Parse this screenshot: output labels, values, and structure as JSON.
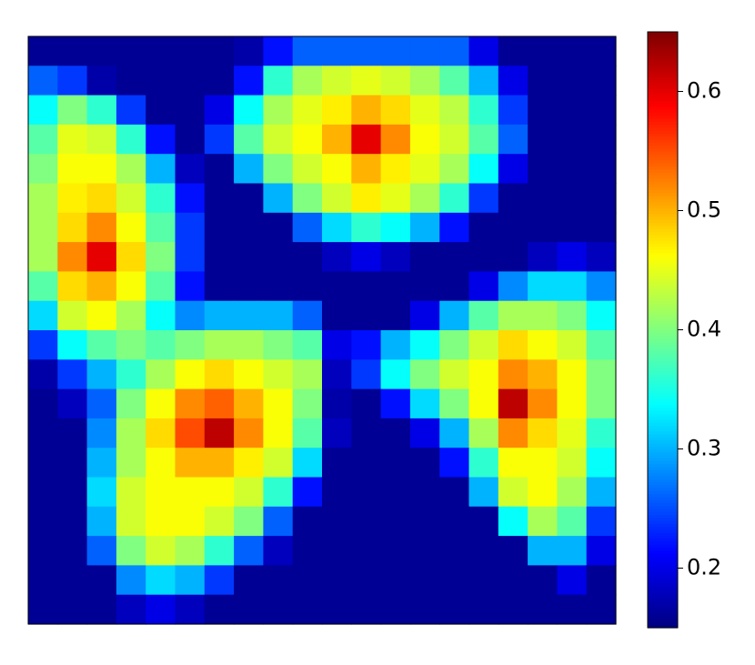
{
  "chart_data": {
    "type": "heatmap",
    "colormap": "jet",
    "clim": [
      0.15,
      0.65
    ],
    "colorbar_ticks": [
      0.2,
      0.3,
      0.4,
      0.5,
      0.6
    ],
    "z": [
      [
        0.16,
        0.16,
        0.16,
        0.16,
        0.16,
        0.16,
        0.16,
        0.17,
        0.22,
        0.26,
        0.26,
        0.26,
        0.26,
        0.26,
        0.26,
        0.2,
        0.16,
        0.16,
        0.16,
        0.16
      ],
      [
        0.26,
        0.24,
        0.17,
        0.16,
        0.16,
        0.16,
        0.16,
        0.22,
        0.36,
        0.42,
        0.44,
        0.45,
        0.44,
        0.42,
        0.38,
        0.3,
        0.2,
        0.16,
        0.16,
        0.16
      ],
      [
        0.34,
        0.4,
        0.36,
        0.24,
        0.16,
        0.16,
        0.2,
        0.34,
        0.42,
        0.45,
        0.47,
        0.5,
        0.48,
        0.45,
        0.43,
        0.36,
        0.24,
        0.16,
        0.16,
        0.16
      ],
      [
        0.38,
        0.45,
        0.44,
        0.36,
        0.22,
        0.16,
        0.24,
        0.38,
        0.44,
        0.46,
        0.5,
        0.6,
        0.52,
        0.46,
        0.44,
        0.38,
        0.26,
        0.16,
        0.16,
        0.16
      ],
      [
        0.4,
        0.46,
        0.46,
        0.42,
        0.3,
        0.18,
        0.16,
        0.3,
        0.4,
        0.44,
        0.46,
        0.5,
        0.47,
        0.45,
        0.42,
        0.34,
        0.2,
        0.16,
        0.16,
        0.16
      ],
      [
        0.42,
        0.47,
        0.48,
        0.44,
        0.36,
        0.22,
        0.16,
        0.16,
        0.3,
        0.4,
        0.44,
        0.47,
        0.45,
        0.42,
        0.36,
        0.24,
        0.16,
        0.16,
        0.16,
        0.16
      ],
      [
        0.42,
        0.48,
        0.52,
        0.46,
        0.38,
        0.24,
        0.16,
        0.16,
        0.16,
        0.26,
        0.32,
        0.36,
        0.34,
        0.3,
        0.22,
        0.16,
        0.16,
        0.16,
        0.16,
        0.16
      ],
      [
        0.42,
        0.52,
        0.6,
        0.48,
        0.4,
        0.24,
        0.16,
        0.16,
        0.16,
        0.16,
        0.18,
        0.2,
        0.18,
        0.16,
        0.16,
        0.16,
        0.16,
        0.18,
        0.2,
        0.18
      ],
      [
        0.38,
        0.48,
        0.5,
        0.46,
        0.38,
        0.22,
        0.16,
        0.16,
        0.16,
        0.16,
        0.16,
        0.16,
        0.16,
        0.16,
        0.16,
        0.2,
        0.28,
        0.32,
        0.32,
        0.28
      ],
      [
        0.32,
        0.44,
        0.46,
        0.42,
        0.34,
        0.28,
        0.3,
        0.3,
        0.3,
        0.26,
        0.16,
        0.16,
        0.16,
        0.2,
        0.3,
        0.38,
        0.42,
        0.42,
        0.4,
        0.34
      ],
      [
        0.24,
        0.34,
        0.38,
        0.4,
        0.38,
        0.4,
        0.42,
        0.42,
        0.4,
        0.38,
        0.2,
        0.22,
        0.3,
        0.34,
        0.4,
        0.44,
        0.48,
        0.46,
        0.44,
        0.38
      ],
      [
        0.17,
        0.24,
        0.3,
        0.36,
        0.42,
        0.46,
        0.48,
        0.46,
        0.44,
        0.42,
        0.18,
        0.24,
        0.34,
        0.4,
        0.44,
        0.46,
        0.52,
        0.5,
        0.46,
        0.4
      ],
      [
        0.16,
        0.18,
        0.26,
        0.4,
        0.46,
        0.52,
        0.54,
        0.5,
        0.46,
        0.4,
        0.17,
        0.16,
        0.22,
        0.32,
        0.4,
        0.46,
        0.62,
        0.52,
        0.46,
        0.4
      ],
      [
        0.16,
        0.16,
        0.28,
        0.42,
        0.48,
        0.55,
        0.62,
        0.52,
        0.46,
        0.38,
        0.18,
        0.16,
        0.16,
        0.2,
        0.3,
        0.42,
        0.52,
        0.48,
        0.45,
        0.36
      ],
      [
        0.16,
        0.16,
        0.3,
        0.42,
        0.46,
        0.5,
        0.5,
        0.47,
        0.44,
        0.32,
        0.16,
        0.16,
        0.16,
        0.16,
        0.22,
        0.36,
        0.46,
        0.46,
        0.44,
        0.34
      ],
      [
        0.16,
        0.16,
        0.32,
        0.44,
        0.46,
        0.46,
        0.46,
        0.44,
        0.36,
        0.22,
        0.16,
        0.16,
        0.16,
        0.16,
        0.16,
        0.3,
        0.44,
        0.46,
        0.42,
        0.3
      ],
      [
        0.16,
        0.16,
        0.3,
        0.44,
        0.46,
        0.46,
        0.44,
        0.4,
        0.26,
        0.16,
        0.16,
        0.16,
        0.16,
        0.16,
        0.16,
        0.16,
        0.34,
        0.42,
        0.38,
        0.24
      ],
      [
        0.16,
        0.16,
        0.26,
        0.4,
        0.44,
        0.42,
        0.36,
        0.26,
        0.18,
        0.16,
        0.16,
        0.16,
        0.16,
        0.16,
        0.16,
        0.16,
        0.16,
        0.3,
        0.3,
        0.2
      ],
      [
        0.16,
        0.16,
        0.16,
        0.28,
        0.32,
        0.3,
        0.24,
        0.16,
        0.16,
        0.16,
        0.16,
        0.16,
        0.16,
        0.16,
        0.16,
        0.16,
        0.16,
        0.16,
        0.2,
        0.16
      ],
      [
        0.16,
        0.16,
        0.16,
        0.18,
        0.2,
        0.18,
        0.16,
        0.16,
        0.16,
        0.16,
        0.16,
        0.16,
        0.16,
        0.16,
        0.16,
        0.16,
        0.16,
        0.16,
        0.16,
        0.16
      ]
    ]
  }
}
